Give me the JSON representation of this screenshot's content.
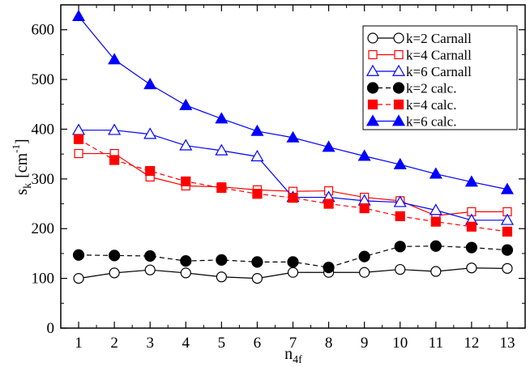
{
  "chart_data": {
    "type": "line",
    "title": "",
    "xlabel": "n_4f",
    "xlabel_main": "n",
    "xlabel_sub": "4f",
    "ylabel": "s_k [cm^-1]",
    "ylabel_main": "s",
    "ylabel_sub": "k",
    "ylabel_unit": "[cm",
    "ylabel_exp": "-1",
    "ylabel_close": "]",
    "xlim": [
      0.5,
      13.5
    ],
    "ylim": [
      0,
      650
    ],
    "xticks": [
      1,
      2,
      3,
      4,
      5,
      6,
      7,
      8,
      9,
      10,
      11,
      12,
      13
    ],
    "yticks": [
      0,
      100,
      200,
      300,
      400,
      500,
      600
    ],
    "x": [
      1,
      2,
      3,
      4,
      5,
      6,
      7,
      8,
      9,
      10,
      11,
      12,
      13
    ],
    "legend_position": "top-right",
    "series": [
      {
        "name": "k=2 Carnall",
        "color": "#000000",
        "marker": "circle",
        "filled": false,
        "dashed": false,
        "values": [
          100,
          111,
          117,
          111,
          103,
          100,
          112,
          112,
          112,
          118,
          114,
          121,
          120
        ]
      },
      {
        "name": "k=4 Carnall",
        "color": "#ff0000",
        "marker": "square",
        "filled": false,
        "dashed": false,
        "values": [
          351,
          351,
          304,
          286,
          284,
          278,
          275,
          276,
          263,
          256,
          226,
          234,
          234
        ]
      },
      {
        "name": "k=6 Carnall",
        "color": "#0000ff",
        "marker": "triangle",
        "filled": false,
        "dashed": false,
        "values": [
          398,
          398,
          390,
          367,
          357,
          345,
          263,
          263,
          256,
          253,
          237,
          217,
          217
        ]
      },
      {
        "name": "k=2 calc.",
        "color": "#000000",
        "marker": "circle",
        "filled": true,
        "dashed": true,
        "values": [
          147,
          146,
          145,
          135,
          137,
          133,
          133,
          122,
          144,
          164,
          165,
          162,
          157
        ]
      },
      {
        "name": "k=4 calc.",
        "color": "#ff0000",
        "marker": "square",
        "filled": true,
        "dashed": true,
        "values": [
          380,
          338,
          316,
          295,
          282,
          270,
          262,
          250,
          241,
          225,
          214,
          204,
          194
        ]
      },
      {
        "name": "k=6 calc.",
        "color": "#0000ff",
        "marker": "triangle",
        "filled": true,
        "dashed": false,
        "values": [
          627,
          540,
          490,
          448,
          421,
          396,
          383,
          364,
          346,
          329,
          310,
          294,
          279
        ]
      }
    ]
  }
}
